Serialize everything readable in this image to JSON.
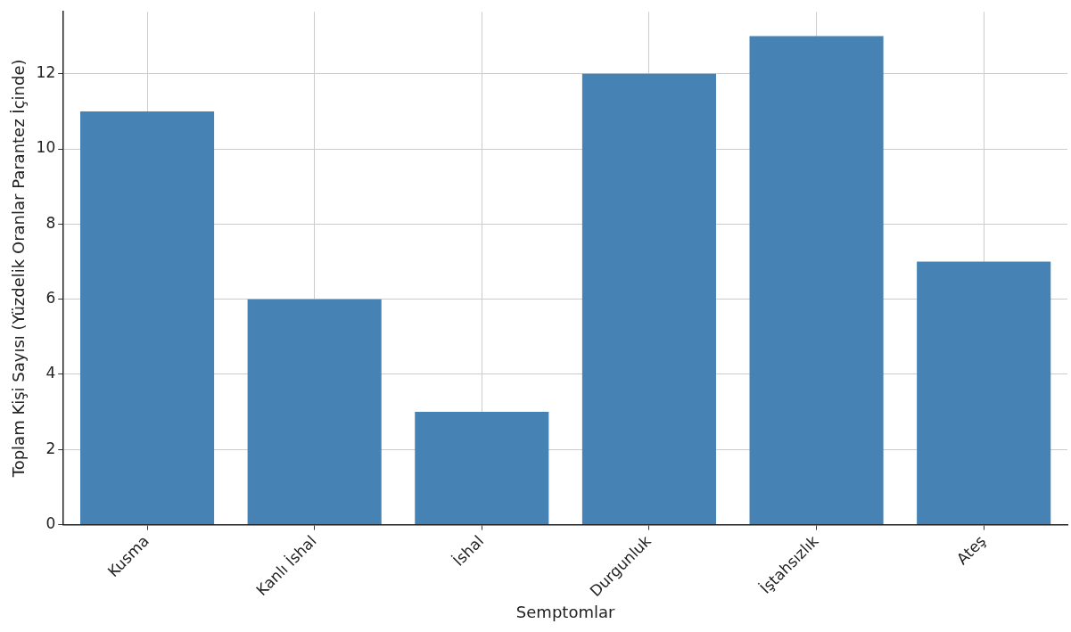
{
  "chart_data": {
    "type": "bar",
    "xlabel": "Semptomlar",
    "ylabel": "Toplam Kişi Sayısı (Yüzdelik Oranlar Parantez İçinde)",
    "categories": [
      "Kusma",
      "Kanlı İshal",
      "İshal",
      "Durgunluk",
      "İştahsızlık",
      "Ateş"
    ],
    "values": [
      11,
      6,
      3,
      12,
      13,
      7
    ],
    "color": "#4682b4",
    "ylim": [
      0,
      13.65
    ],
    "yticks": [
      0,
      2,
      4,
      6,
      8,
      10,
      12
    ],
    "grid": true,
    "legend": false
  }
}
